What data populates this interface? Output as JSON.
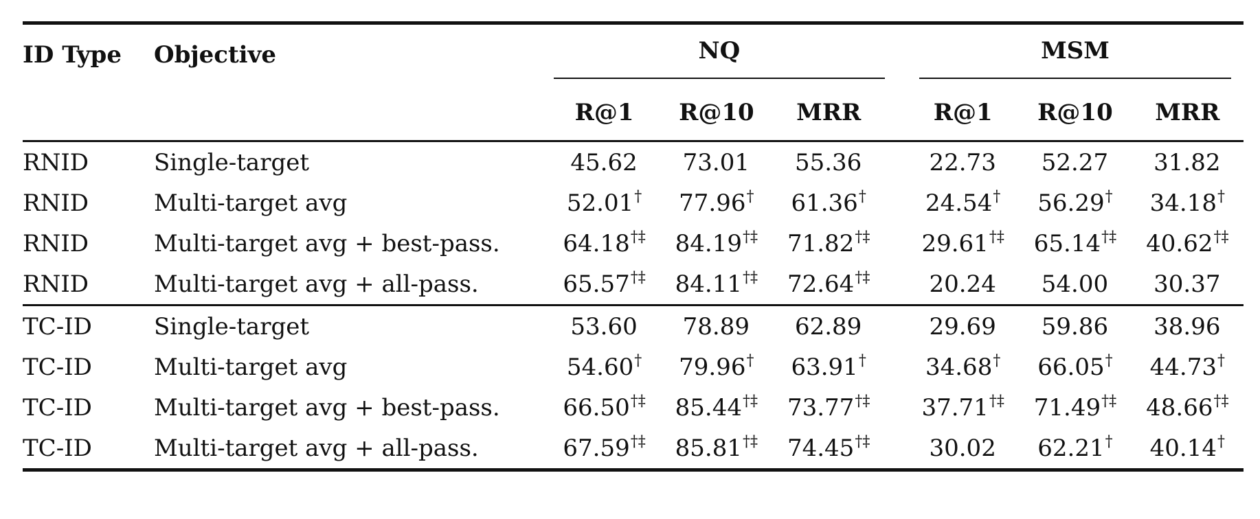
{
  "table": {
    "headers": {
      "id_type": "ID Type",
      "objective": "Objective",
      "groups": [
        "NQ",
        "MSM"
      ],
      "metrics": [
        "R@1",
        "R@10",
        "MRR"
      ]
    },
    "rows": [
      {
        "id_type": "RNID",
        "objective": "Single-target",
        "values": [
          [
            "45.62",
            ""
          ],
          [
            "73.01",
            ""
          ],
          [
            "55.36",
            ""
          ],
          [
            "22.73",
            ""
          ],
          [
            "52.27",
            ""
          ],
          [
            "31.82",
            ""
          ]
        ]
      },
      {
        "id_type": "RNID",
        "objective": "Multi-target avg",
        "values": [
          [
            "52.01",
            "†"
          ],
          [
            "77.96",
            "†"
          ],
          [
            "61.36",
            "†"
          ],
          [
            "24.54",
            "†"
          ],
          [
            "56.29",
            "†"
          ],
          [
            "34.18",
            "†"
          ]
        ]
      },
      {
        "id_type": "RNID",
        "objective": "Multi-target avg + best-pass.",
        "values": [
          [
            "64.18",
            "†‡"
          ],
          [
            "84.19",
            "†‡"
          ],
          [
            "71.82",
            "†‡"
          ],
          [
            "29.61",
            "†‡"
          ],
          [
            "65.14",
            "†‡"
          ],
          [
            "40.62",
            "†‡"
          ]
        ]
      },
      {
        "id_type": "RNID",
        "objective": "Multi-target avg + all-pass.",
        "values": [
          [
            "65.57",
            "†‡"
          ],
          [
            "84.11",
            "†‡"
          ],
          [
            "72.64",
            "†‡"
          ],
          [
            "20.24",
            ""
          ],
          [
            "54.00",
            ""
          ],
          [
            "30.37",
            ""
          ]
        ]
      },
      {
        "id_type": "TC-ID",
        "objective": "Single-target",
        "values": [
          [
            "53.60",
            ""
          ],
          [
            "78.89",
            ""
          ],
          [
            "62.89",
            ""
          ],
          [
            "29.69",
            ""
          ],
          [
            "59.86",
            ""
          ],
          [
            "38.96",
            ""
          ]
        ]
      },
      {
        "id_type": "TC-ID",
        "objective": "Multi-target avg",
        "values": [
          [
            "54.60",
            "†"
          ],
          [
            "79.96",
            "†"
          ],
          [
            "63.91",
            "†"
          ],
          [
            "34.68",
            "†"
          ],
          [
            "66.05",
            "†"
          ],
          [
            "44.73",
            "†"
          ]
        ]
      },
      {
        "id_type": "TC-ID",
        "objective": "Multi-target avg + best-pass.",
        "values": [
          [
            "66.50",
            "†‡"
          ],
          [
            "85.44",
            "†‡"
          ],
          [
            "73.77",
            "†‡"
          ],
          [
            "37.71",
            "†‡"
          ],
          [
            "71.49",
            "†‡"
          ],
          [
            "48.66",
            "†‡"
          ]
        ]
      },
      {
        "id_type": "TC-ID",
        "objective": "Multi-target avg + all-pass.",
        "values": [
          [
            "67.59",
            "†‡"
          ],
          [
            "85.81",
            "†‡"
          ],
          [
            "74.45",
            "†‡"
          ],
          [
            "30.02",
            ""
          ],
          [
            "62.21",
            "†"
          ],
          [
            "40.14",
            "†"
          ]
        ]
      }
    ]
  }
}
